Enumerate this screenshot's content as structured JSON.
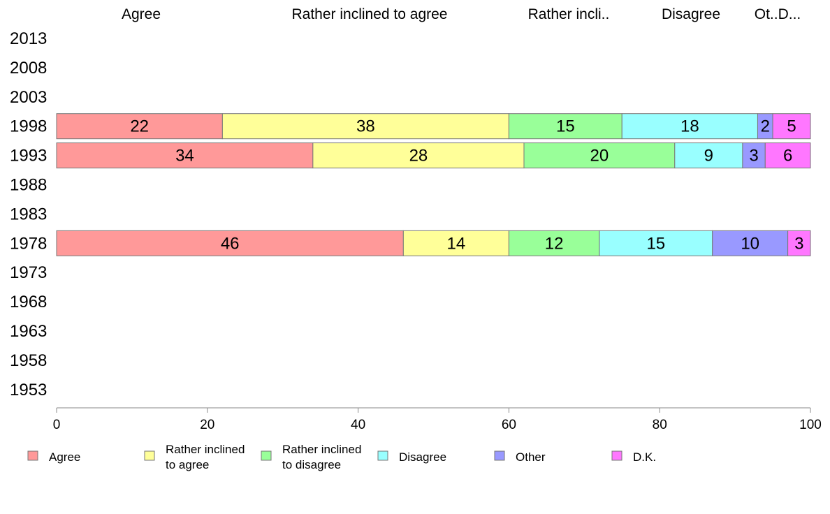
{
  "chart_data": {
    "type": "bar",
    "orientation": "horizontal",
    "stacked": true,
    "categories": [
      "2013",
      "2008",
      "2003",
      "1998",
      "1993",
      "1988",
      "1983",
      "1978",
      "1973",
      "1968",
      "1963",
      "1958",
      "1953"
    ],
    "series": [
      {
        "name": "Agree",
        "values": [
          null,
          null,
          null,
          22,
          34,
          null,
          null,
          46,
          null,
          null,
          null,
          null,
          null
        ]
      },
      {
        "name": "Rather inclined to agree",
        "values": [
          null,
          null,
          null,
          38,
          28,
          null,
          null,
          14,
          null,
          null,
          null,
          null,
          null
        ]
      },
      {
        "name": "Rather inclined to disagree",
        "values": [
          null,
          null,
          null,
          15,
          20,
          null,
          null,
          12,
          null,
          null,
          null,
          null,
          null
        ]
      },
      {
        "name": "Disagree",
        "values": [
          null,
          null,
          null,
          18,
          9,
          null,
          null,
          15,
          null,
          null,
          null,
          null,
          null
        ]
      },
      {
        "name": "Other",
        "values": [
          null,
          null,
          null,
          2,
          3,
          null,
          null,
          10,
          null,
          null,
          null,
          null,
          null
        ]
      },
      {
        "name": "D.K.",
        "values": [
          null,
          null,
          null,
          5,
          6,
          null,
          null,
          3,
          null,
          null,
          null,
          null,
          null
        ]
      }
    ],
    "colors": [
      "#ff9999",
      "#ffff99",
      "#99ff99",
      "#99ffff",
      "#9999ff",
      "#ff77ff"
    ],
    "column_headers": [
      "Agree",
      "Rather inclined to agree",
      "Rather incli..",
      "Disagree",
      "Ot..D..."
    ],
    "legend_labels": [
      [
        "Agree"
      ],
      [
        "Rather inclined",
        "to agree"
      ],
      [
        "Rather inclined",
        "to disagree"
      ],
      [
        "Disagree"
      ],
      [
        "Other"
      ],
      [
        "D.K."
      ]
    ],
    "xlim": [
      0,
      100
    ],
    "xticks": [
      0,
      20,
      40,
      60,
      80,
      100
    ],
    "legend_position": "bottom",
    "grid": false
  }
}
